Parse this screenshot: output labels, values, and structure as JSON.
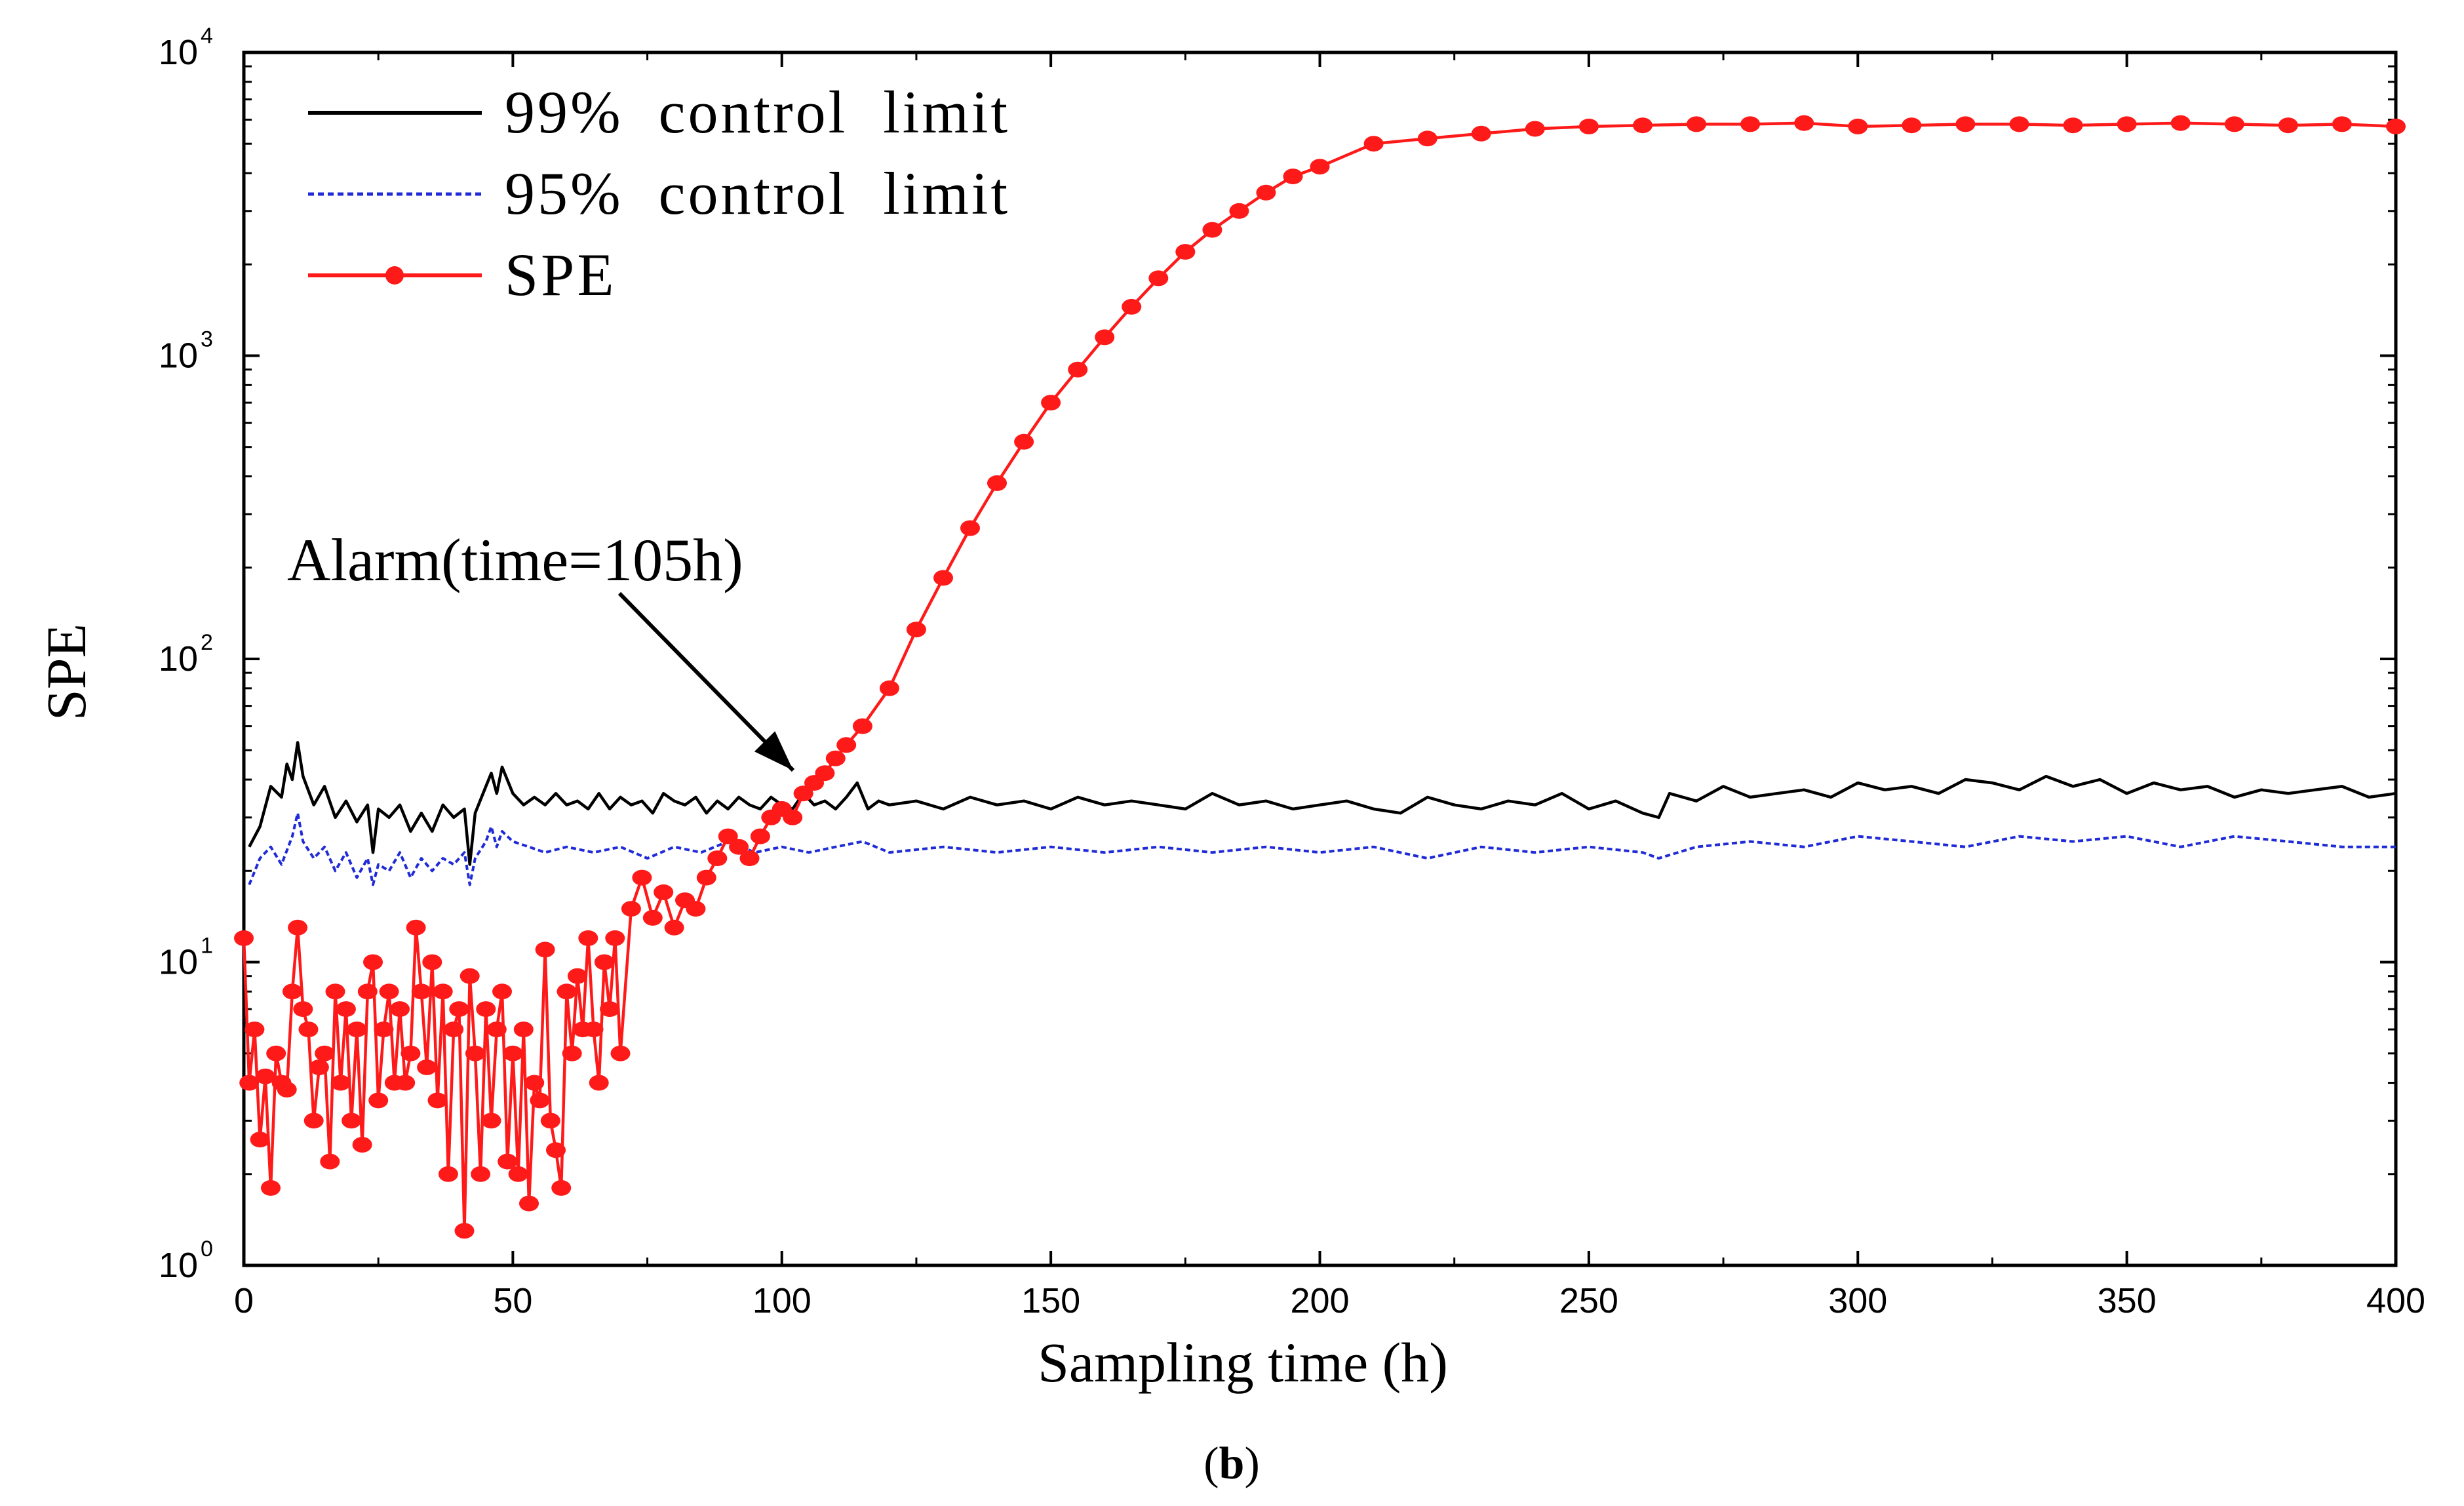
{
  "caption": {
    "open": "(",
    "letter": "b",
    "close": ")"
  },
  "colors": {
    "limit99": "#000000",
    "limit95": "#1f2bd6",
    "spe": "#ff1a1a",
    "axis": "#000000"
  },
  "chart_data": {
    "type": "line",
    "xlabel": "Sampling time (h)",
    "ylabel": "SPE",
    "xlim": [
      0,
      400
    ],
    "ylim": [
      1,
      10000
    ],
    "yscale": "log",
    "grid": false,
    "legend_position": "top-left",
    "xticks": [
      "0",
      "50",
      "100",
      "150",
      "200",
      "250",
      "300",
      "350",
      "400"
    ],
    "yticks": [
      {
        "base": "10",
        "exp": "0",
        "value": 1
      },
      {
        "base": "10",
        "exp": "1",
        "value": 10
      },
      {
        "base": "10",
        "exp": "2",
        "value": 100
      },
      {
        "base": "10",
        "exp": "3",
        "value": 1000
      },
      {
        "base": "10",
        "exp": "4",
        "value": 10000
      }
    ],
    "annotation": {
      "text": "Alarm(time=105h)",
      "x": 105,
      "y": 38
    },
    "series": [
      {
        "name": "99%  control  limit",
        "style": "solid",
        "x": [
          1,
          3,
          5,
          7,
          8,
          9,
          10,
          11,
          13,
          15,
          17,
          19,
          21,
          23,
          24,
          25,
          27,
          29,
          31,
          33,
          35,
          37,
          39,
          41,
          42,
          43,
          45,
          46,
          47,
          48,
          50,
          52,
          54,
          56,
          58,
          60,
          62,
          64,
          66,
          68,
          70,
          72,
          74,
          76,
          78,
          80,
          82,
          84,
          86,
          88,
          90,
          92,
          94,
          96,
          98,
          100,
          102,
          104,
          106,
          108,
          110,
          112,
          114,
          116,
          118,
          120,
          125,
          130,
          135,
          140,
          145,
          150,
          155,
          160,
          165,
          170,
          175,
          180,
          185,
          190,
          195,
          200,
          205,
          210,
          215,
          220,
          225,
          230,
          235,
          240,
          245,
          250,
          255,
          260,
          263,
          265,
          270,
          275,
          280,
          285,
          290,
          295,
          300,
          305,
          310,
          315,
          320,
          325,
          330,
          335,
          340,
          345,
          350,
          355,
          360,
          365,
          370,
          375,
          380,
          385,
          390,
          395,
          400
        ],
        "values": [
          24,
          28,
          38,
          35,
          45,
          40,
          53,
          41,
          33,
          38,
          30,
          34,
          29,
          33,
          23,
          32,
          30,
          33,
          27,
          31,
          27,
          33,
          30,
          32,
          21,
          31,
          38,
          42,
          36,
          44,
          36,
          33,
          35,
          33,
          36,
          33,
          34,
          32,
          36,
          32,
          35,
          33,
          34,
          31,
          36,
          34,
          33,
          35,
          31,
          34,
          32,
          35,
          33,
          32,
          35,
          33,
          32,
          36,
          33,
          34,
          32,
          35,
          39,
          32,
          34,
          33,
          34,
          32,
          35,
          33,
          34,
          32,
          35,
          33,
          34,
          33,
          32,
          36,
          33,
          34,
          32,
          33,
          34,
          32,
          31,
          35,
          33,
          32,
          34,
          33,
          36,
          32,
          34,
          31,
          30,
          36,
          34,
          38,
          35,
          36,
          37,
          35,
          39,
          37,
          38,
          36,
          40,
          39,
          37,
          41,
          38,
          40,
          36,
          39,
          37,
          38,
          35,
          37,
          36,
          37,
          38,
          35,
          36
        ]
      },
      {
        "name": "95%  control  limit",
        "style": "dashed",
        "x": [
          1,
          3,
          5,
          7,
          9,
          10,
          11,
          13,
          15,
          17,
          19,
          21,
          23,
          24,
          25,
          27,
          29,
          31,
          33,
          35,
          37,
          39,
          41,
          42,
          43,
          45,
          46,
          47,
          48,
          50,
          53,
          56,
          60,
          65,
          70,
          75,
          80,
          85,
          90,
          95,
          100,
          105,
          110,
          115,
          120,
          130,
          140,
          150,
          160,
          170,
          180,
          190,
          200,
          210,
          220,
          230,
          240,
          250,
          260,
          263,
          270,
          280,
          290,
          300,
          310,
          320,
          330,
          340,
          350,
          360,
          370,
          380,
          390,
          400
        ],
        "values": [
          18,
          22,
          24,
          21,
          26,
          31,
          25,
          22,
          24,
          20,
          23,
          19,
          22,
          18,
          21,
          20,
          23,
          19,
          22,
          20,
          22,
          21,
          23,
          18,
          22,
          25,
          28,
          24,
          27,
          25,
          24,
          23,
          24,
          23,
          24,
          22,
          24,
          23,
          25,
          23,
          24,
          23,
          24,
          25,
          23,
          24,
          23,
          24,
          23,
          24,
          23,
          24,
          23,
          24,
          22,
          24,
          23,
          24,
          23,
          22,
          24,
          25,
          24,
          26,
          25,
          24,
          26,
          25,
          26,
          24,
          26,
          25,
          24,
          24
        ]
      },
      {
        "name": "SPE",
        "style": "solid-markers",
        "x": [
          0,
          1,
          2,
          3,
          4,
          5,
          6,
          7,
          8,
          9,
          10,
          11,
          12,
          13,
          14,
          15,
          16,
          17,
          18,
          19,
          20,
          21,
          22,
          23,
          24,
          25,
          26,
          27,
          28,
          29,
          30,
          31,
          32,
          33,
          34,
          35,
          36,
          37,
          38,
          39,
          40,
          41,
          42,
          43,
          44,
          45,
          46,
          47,
          48,
          49,
          50,
          51,
          52,
          53,
          54,
          55,
          56,
          57,
          58,
          59,
          60,
          61,
          62,
          63,
          64,
          65,
          66,
          67,
          68,
          69,
          70,
          72,
          74,
          76,
          78,
          80,
          82,
          84,
          86,
          88,
          90,
          92,
          94,
          96,
          98,
          100,
          102,
          104,
          106,
          108,
          110,
          112,
          115,
          120,
          125,
          130,
          135,
          140,
          145,
          150,
          155,
          160,
          165,
          170,
          175,
          180,
          185,
          190,
          195,
          200,
          210,
          220,
          230,
          240,
          250,
          260,
          270,
          280,
          290,
          300,
          310,
          320,
          330,
          340,
          350,
          360,
          370,
          380,
          390,
          400
        ],
        "values": [
          12,
          4,
          6,
          2.6,
          4.2,
          1.8,
          5,
          4,
          3.8,
          8,
          13,
          7,
          6,
          3,
          4.5,
          5,
          2.2,
          8,
          4,
          7,
          3,
          6,
          2.5,
          8,
          10,
          3.5,
          6,
          8,
          4,
          7,
          4,
          5,
          13,
          8,
          4.5,
          10,
          3.5,
          8,
          2,
          6,
          7,
          1.3,
          9,
          5,
          2,
          7,
          3,
          6,
          8,
          2.2,
          5,
          2,
          6,
          1.6,
          4,
          3.5,
          11,
          3,
          2.4,
          1.8,
          8,
          5,
          9,
          6,
          12,
          6,
          4,
          10,
          7,
          12,
          5,
          15,
          19,
          14,
          17,
          13,
          16,
          15,
          19,
          22,
          26,
          24,
          22,
          26,
          30,
          32,
          30,
          36,
          39,
          42,
          47,
          52,
          60,
          80,
          125,
          185,
          270,
          380,
          520,
          700,
          900,
          1150,
          1450,
          1800,
          2200,
          2600,
          3000,
          3450,
          3900,
          4200,
          5000,
          5200,
          5400,
          5600,
          5700,
          5750,
          5800,
          5800,
          5850,
          5700,
          5750,
          5800,
          5800,
          5750,
          5800,
          5850,
          5800,
          5750,
          5800,
          5700
        ]
      }
    ]
  }
}
